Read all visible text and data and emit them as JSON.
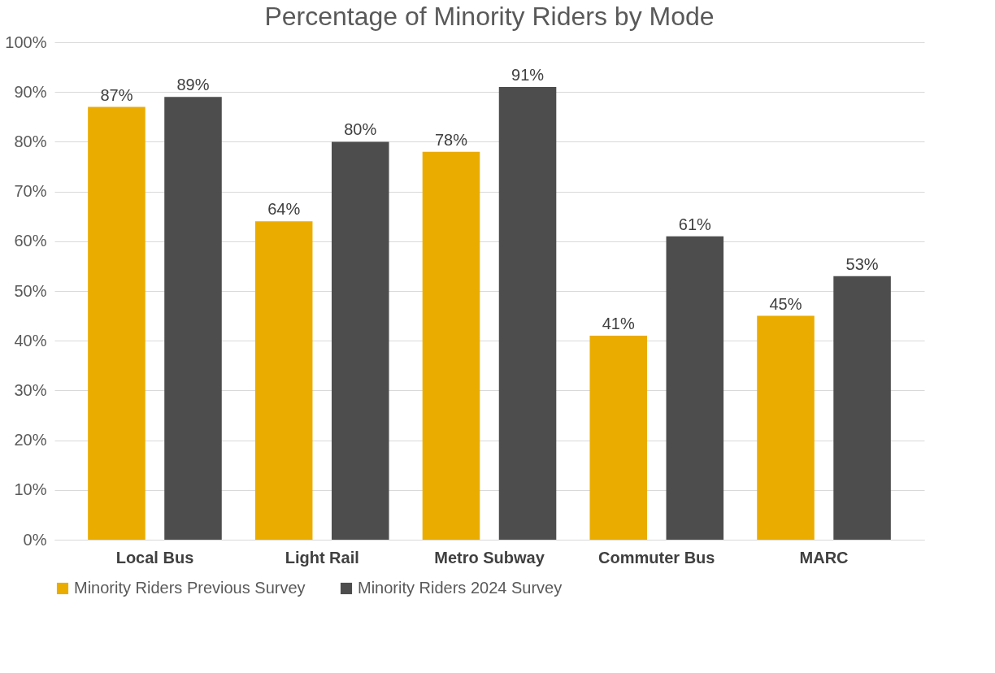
{
  "chart_data": {
    "type": "bar",
    "title": "Percentage of Minority Riders by Mode",
    "categories": [
      "Local Bus",
      "Light Rail",
      "Metro Subway",
      "Commuter Bus",
      "MARC"
    ],
    "series": [
      {
        "name": "Minority Riders Previous Survey",
        "color": "#ebac00",
        "values": [
          87,
          64,
          78,
          41,
          45
        ],
        "value_labels": [
          "87%",
          "64%",
          "78%",
          "41%",
          "45%"
        ]
      },
      {
        "name": "Minority Riders 2024 Survey",
        "color": "#4d4d4d",
        "values": [
          89,
          80,
          91,
          61,
          53
        ],
        "value_labels": [
          "89%",
          "80%",
          "91%",
          "61%",
          "53%"
        ]
      }
    ],
    "ylim": [
      0,
      100
    ],
    "yticks": [
      {
        "value": 0,
        "label": "0%"
      },
      {
        "value": 10,
        "label": "10%"
      },
      {
        "value": 20,
        "label": "20%"
      },
      {
        "value": 30,
        "label": "30%"
      },
      {
        "value": 40,
        "label": "40%"
      },
      {
        "value": 50,
        "label": "50%"
      },
      {
        "value": 60,
        "label": "60%"
      },
      {
        "value": 70,
        "label": "70%"
      },
      {
        "value": 80,
        "label": "80%"
      },
      {
        "value": 90,
        "label": "90%"
      },
      {
        "value": 100,
        "label": "100%"
      }
    ],
    "grid": "y",
    "legend": "bottom"
  }
}
